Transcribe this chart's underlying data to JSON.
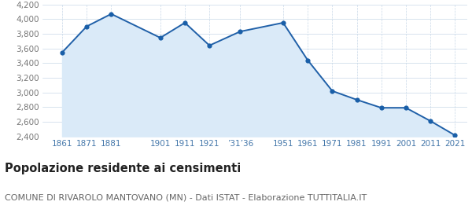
{
  "x_labels": [
    "1861",
    "1871",
    "1881",
    "1901",
    "1911",
    "1921",
    "’31’36",
    "1951",
    "1961",
    "1971",
    "1981",
    "1991",
    "2001",
    "2011",
    "2021"
  ],
  "x_positions": [
    1861,
    1871,
    1881,
    1901,
    1911,
    1921,
    1933.5,
    1951,
    1961,
    1971,
    1981,
    1991,
    2001,
    2011,
    2021
  ],
  "x_tick_positions": [
    1861,
    1871,
    1881,
    1901,
    1911,
    1921,
    1933.5,
    1951,
    1961,
    1971,
    1981,
    1991,
    2001,
    2011,
    2021
  ],
  "y_values": [
    3545,
    3900,
    4070,
    3745,
    3950,
    3640,
    3830,
    3950,
    3440,
    3020,
    2900,
    2790,
    2790,
    2610,
    2415
  ],
  "line_color": "#2060a8",
  "fill_color": "#daeaf8",
  "marker_color": "#1a5fa8",
  "background_color": "#ffffff",
  "grid_color": "#c8d8e8",
  "ylim": [
    2400,
    4200
  ],
  "yticks": [
    2400,
    2600,
    2800,
    3000,
    3200,
    3400,
    3600,
    3800,
    4000,
    4200
  ],
  "ytick_labels": [
    "2,400",
    "2,600",
    "2,800",
    "3,000",
    "3,200",
    "3,400",
    "3,600",
    "3,800",
    "4,000",
    "4,200"
  ],
  "title": "Popolazione residente ai censimenti",
  "subtitle": "COMUNE DI RIVAROLO MANTOVANO (MN) - Dati ISTAT - Elaborazione TUTTITALIA.IT",
  "title_fontsize": 10.5,
  "subtitle_fontsize": 8.0,
  "axis_fontsize": 7.5,
  "marker_size": 4.5,
  "xlim": [
    1853,
    2026
  ]
}
